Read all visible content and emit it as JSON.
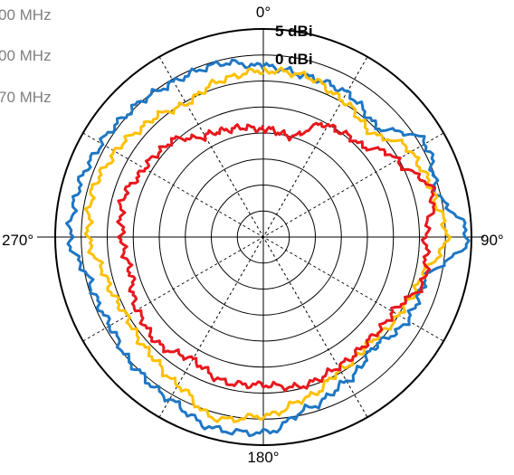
{
  "chart_data": {
    "type": "polar-line",
    "title": "",
    "legend": {
      "placement": "top-left",
      "entries": [
        "00 MHz",
        "00 MHz",
        "70 MHz"
      ]
    },
    "angle_labels": [
      "0°",
      "90°",
      "180°",
      "270°"
    ],
    "radial_labels": [
      "5 dBi",
      "0 dBi"
    ],
    "angular_step_deg": 30,
    "radial_rings": 8,
    "radial_units": "normalized radius (outer ring = 1.0)",
    "series": [
      {
        "color": "#1f77c4",
        "angles": [
          0,
          15,
          30,
          45,
          60,
          75,
          90,
          105,
          120,
          135,
          150,
          165,
          180,
          195,
          210,
          225,
          240,
          255,
          270,
          285,
          300,
          315,
          330,
          345,
          360
        ],
        "values": [
          0.82,
          0.8,
          0.8,
          0.76,
          0.9,
          0.86,
          0.98,
          0.8,
          0.8,
          0.75,
          0.8,
          0.85,
          0.94,
          0.95,
          0.9,
          0.88,
          0.85,
          0.86,
          0.93,
          0.92,
          0.9,
          0.88,
          0.86,
          0.86,
          0.82
        ]
      },
      {
        "color": "#ffc000",
        "angles": [
          0,
          15,
          30,
          45,
          60,
          75,
          90,
          105,
          120,
          135,
          150,
          165,
          180,
          195,
          210,
          225,
          240,
          255,
          270,
          285,
          300,
          315,
          330,
          345,
          360
        ],
        "values": [
          0.8,
          0.8,
          0.76,
          0.72,
          0.82,
          0.84,
          0.88,
          0.78,
          0.75,
          0.72,
          0.74,
          0.8,
          0.86,
          0.9,
          0.82,
          0.78,
          0.76,
          0.78,
          0.84,
          0.85,
          0.82,
          0.78,
          0.74,
          0.78,
          0.8
        ]
      },
      {
        "color": "#e8181d",
        "angles": [
          0,
          15,
          30,
          45,
          60,
          75,
          90,
          105,
          120,
          135,
          150,
          165,
          180,
          195,
          210,
          225,
          240,
          255,
          270,
          285,
          300,
          315,
          330,
          345,
          360
        ],
        "values": [
          0.52,
          0.5,
          0.62,
          0.64,
          0.74,
          0.84,
          0.78,
          0.8,
          0.72,
          0.71,
          0.72,
          0.74,
          0.71,
          0.72,
          0.68,
          0.72,
          0.7,
          0.66,
          0.68,
          0.7,
          0.66,
          0.64,
          0.56,
          0.54,
          0.52
        ]
      }
    ]
  }
}
